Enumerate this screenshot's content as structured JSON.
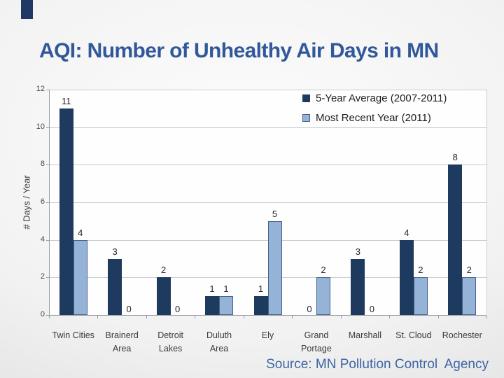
{
  "slide": {
    "title": "AQI: Number of Unhealthy Air Days in MN",
    "source": "Source: MN Pollution Control  Agency",
    "accent_color": "#1f3864"
  },
  "chart_data": {
    "type": "bar",
    "title": "",
    "xlabel": "",
    "ylabel": "# Days / Year",
    "ylim": [
      0,
      12
    ],
    "yticks": [
      0,
      2,
      4,
      6,
      8,
      10,
      12
    ],
    "grid": true,
    "legend_position": "top-right-inside",
    "categories": [
      "Twin Cities",
      "Brainerd\nArea",
      "Detroit\nLakes",
      "Duluth\nArea",
      "Ely",
      "Grand\nPortage",
      "Marshall",
      "St. Cloud",
      "Rochester"
    ],
    "series": [
      {
        "name": "5-Year Average (2007-2011)",
        "color": "#1e3a5f",
        "border": "#1e3a5f",
        "values": [
          11,
          3,
          2,
          1,
          1,
          0,
          3,
          4,
          8
        ]
      },
      {
        "name": "Most Recent Year (2011)",
        "color": "#95b3d7",
        "border": "#44618c",
        "values": [
          4,
          0,
          0,
          1,
          5,
          2,
          0,
          2,
          2
        ]
      }
    ]
  }
}
